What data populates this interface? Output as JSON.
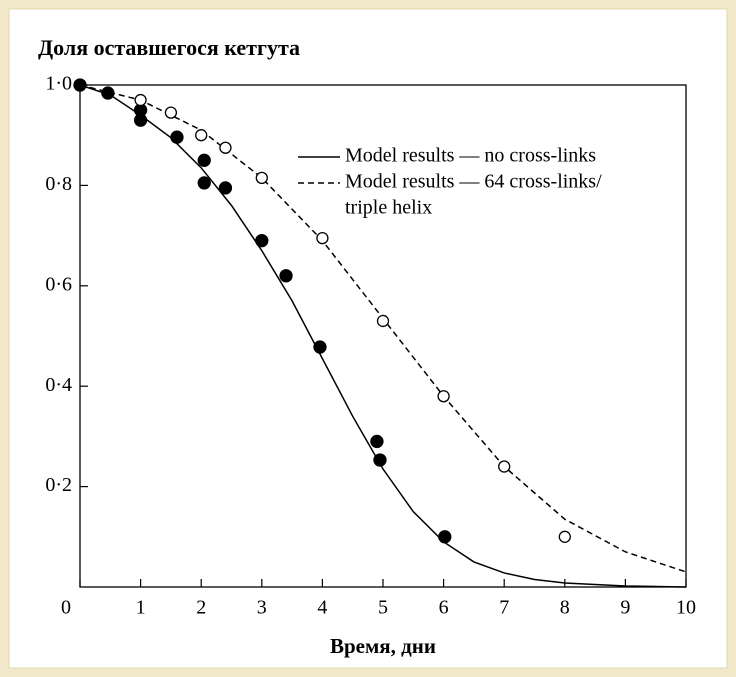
{
  "chart_data": {
    "type": "scatter",
    "title": "Доля оставшегося кетгута",
    "x_label": "Время,  дни",
    "xlim": [
      0,
      10
    ],
    "ylim": [
      0,
      1
    ],
    "xticks": [
      0,
      1,
      2,
      3,
      4,
      5,
      6,
      7,
      8,
      9,
      10
    ],
    "yticks": [
      {
        "value": 0.2,
        "label": "0·2"
      },
      {
        "value": 0.4,
        "label": "0·4"
      },
      {
        "value": 0.6,
        "label": "0·6"
      },
      {
        "value": 0.8,
        "label": "0·8"
      },
      {
        "value": 1,
        "label": "1·0"
      }
    ],
    "lines": [
      {
        "name": [
          "Model results — no cross-links"
        ],
        "style": "solid",
        "color": "#000000",
        "x": [
          0,
          0.5,
          1,
          1.5,
          2,
          2.5,
          3,
          3.5,
          4,
          4.5,
          5,
          5.5,
          6,
          6.5,
          7,
          7.5,
          8,
          9,
          10
        ],
        "values": [
          1.0,
          0.98,
          0.94,
          0.895,
          0.835,
          0.76,
          0.67,
          0.57,
          0.455,
          0.34,
          0.235,
          0.15,
          0.09,
          0.05,
          0.028,
          0.015,
          0.008,
          0.002,
          0
        ]
      },
      {
        "name": [
          "Model results — 64 cross-links/",
          "triple helix"
        ],
        "style": "dashed",
        "color": "#000000",
        "x": [
          0,
          1,
          2,
          3,
          4,
          5,
          6,
          7,
          8,
          9,
          10
        ],
        "values": [
          1.0,
          0.97,
          0.91,
          0.815,
          0.69,
          0.535,
          0.38,
          0.24,
          0.135,
          0.07,
          0.03
        ]
      }
    ],
    "points": [
      {
        "marker": "filled",
        "color": "#000000",
        "x": [
          0,
          0.46,
          1,
          1,
          1.6,
          2.05,
          2.05,
          2.4,
          3,
          3.4,
          3.96,
          4.9,
          4.95,
          6.02
        ],
        "values": [
          1.0,
          0.984,
          0.95,
          0.93,
          0.896,
          0.85,
          0.805,
          0.795,
          0.69,
          0.62,
          0.478,
          0.29,
          0.253,
          0.1
        ]
      },
      {
        "marker": "open",
        "color": "#000000",
        "x": [
          1,
          1.5,
          2,
          2.4,
          3,
          4,
          5,
          6,
          7,
          8
        ],
        "values": [
          0.97,
          0.945,
          0.9,
          0.875,
          0.815,
          0.695,
          0.53,
          0.38,
          0.24,
          0.1
        ]
      }
    ]
  }
}
